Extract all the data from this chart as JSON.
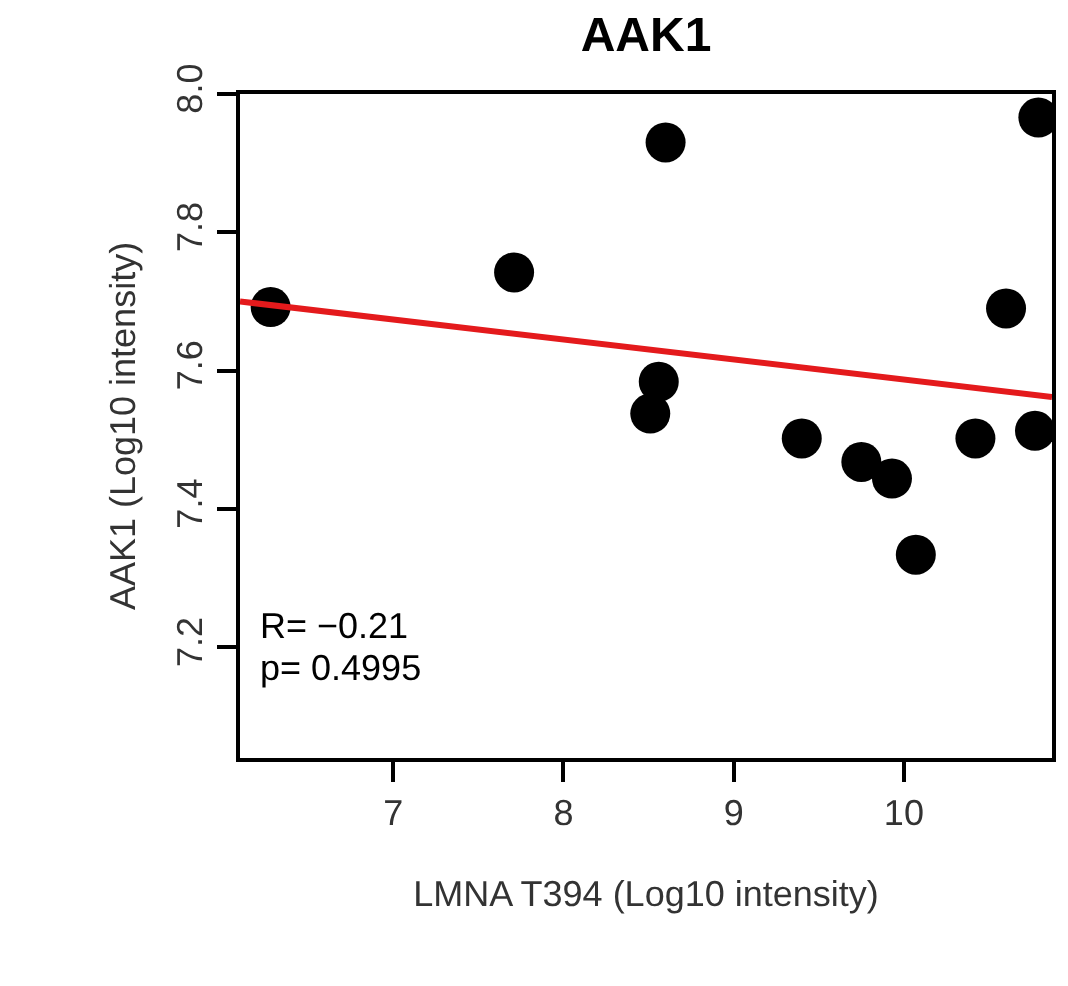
{
  "chart_data": {
    "type": "scatter",
    "title": "AAK1",
    "xlabel": "LMNA T394 (Log10 intensity)",
    "ylabel": "AAK1 (Log10 intensity)",
    "xlim": [
      6.1,
      10.87
    ],
    "xticks": [
      7,
      8,
      9,
      10
    ],
    "ylim": [
      7.04,
      8.0
    ],
    "yticks": [
      {
        "value": 7.2,
        "label": "7.2"
      },
      {
        "value": 7.4,
        "label": "7.4"
      },
      {
        "value": 7.6,
        "label": "7.6"
      },
      {
        "value": 7.8,
        "label": "7.8"
      },
      {
        "value": 8.0,
        "label": "8.0"
      }
    ],
    "marker": "circle",
    "series": [
      {
        "color": "#000000",
        "x": [
          6.28,
          7.71,
          8.6,
          8.56,
          8.51,
          9.4,
          9.75,
          9.93,
          10.07,
          10.42,
          10.6,
          10.77,
          10.79
        ],
        "values": [
          7.692,
          7.742,
          7.93,
          7.584,
          7.538,
          7.502,
          7.468,
          7.444,
          7.334,
          7.502,
          7.69,
          7.513,
          7.966
        ]
      },
      {
        "type": "line",
        "marker": "none",
        "color": "#e41a1c",
        "x": [
          6.1,
          10.87
        ],
        "values": [
          7.7,
          7.562
        ]
      }
    ],
    "annotations": [
      "R= −0.21",
      "p= 0.4995"
    ]
  }
}
